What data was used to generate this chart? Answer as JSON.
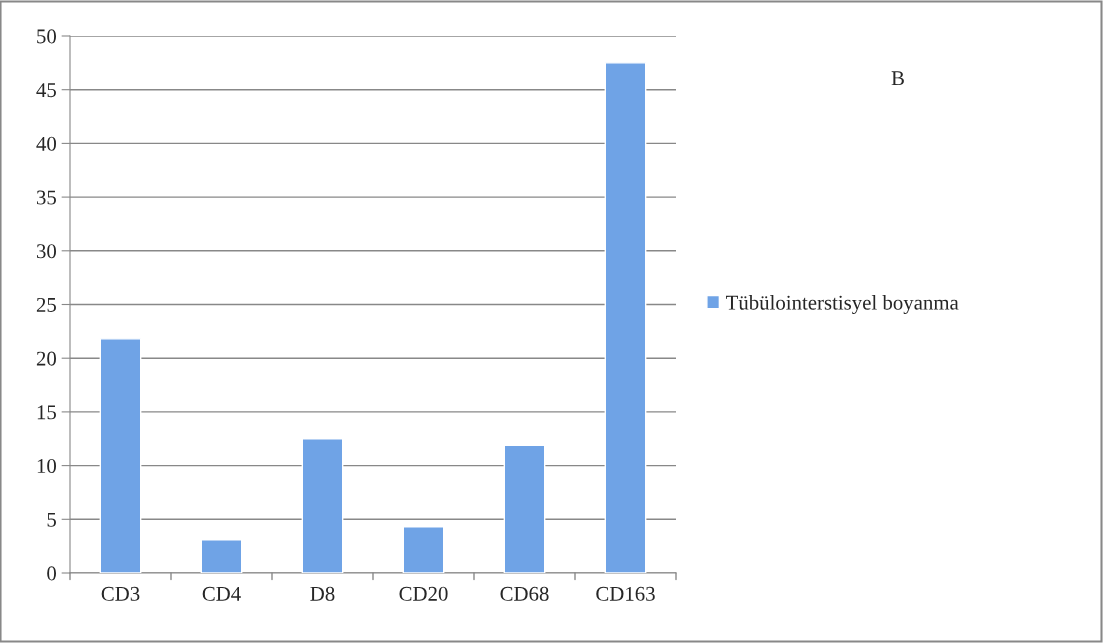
{
  "chart_data": {
    "type": "bar",
    "categories": [
      "CD3",
      "CD4",
      "D8",
      "CD20",
      "CD68",
      "CD163"
    ],
    "series": [
      {
        "name": "Tübülointerstisyel boyanma",
        "color": "#6fa3e6",
        "values": [
          21.8,
          3.1,
          12.5,
          4.3,
          11.9,
          47.5
        ]
      }
    ],
    "ylim": [
      0,
      50
    ],
    "yticks": [
      0,
      5,
      10,
      15,
      20,
      25,
      30,
      35,
      40,
      45,
      50
    ],
    "grid": "y",
    "legend": "right",
    "annotations": [
      "B"
    ]
  }
}
